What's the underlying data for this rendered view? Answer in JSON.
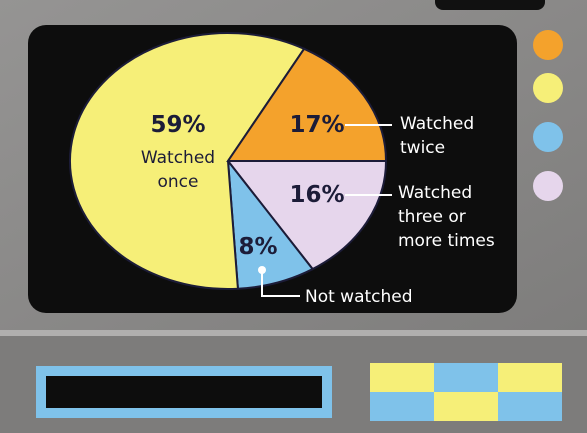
{
  "chart_data": {
    "type": "pie",
    "categories": [
      "Watched three or more times",
      "Not watched",
      "Watched once",
      "Watched twice"
    ],
    "values": [
      16,
      8,
      59,
      17
    ],
    "value_labels": [
      "16%",
      "8%",
      "59%",
      "17%"
    ],
    "colors": [
      "#e6d6ec",
      "#7fc2ea",
      "#f6ef78",
      "#f4a22c"
    ]
  }
}
